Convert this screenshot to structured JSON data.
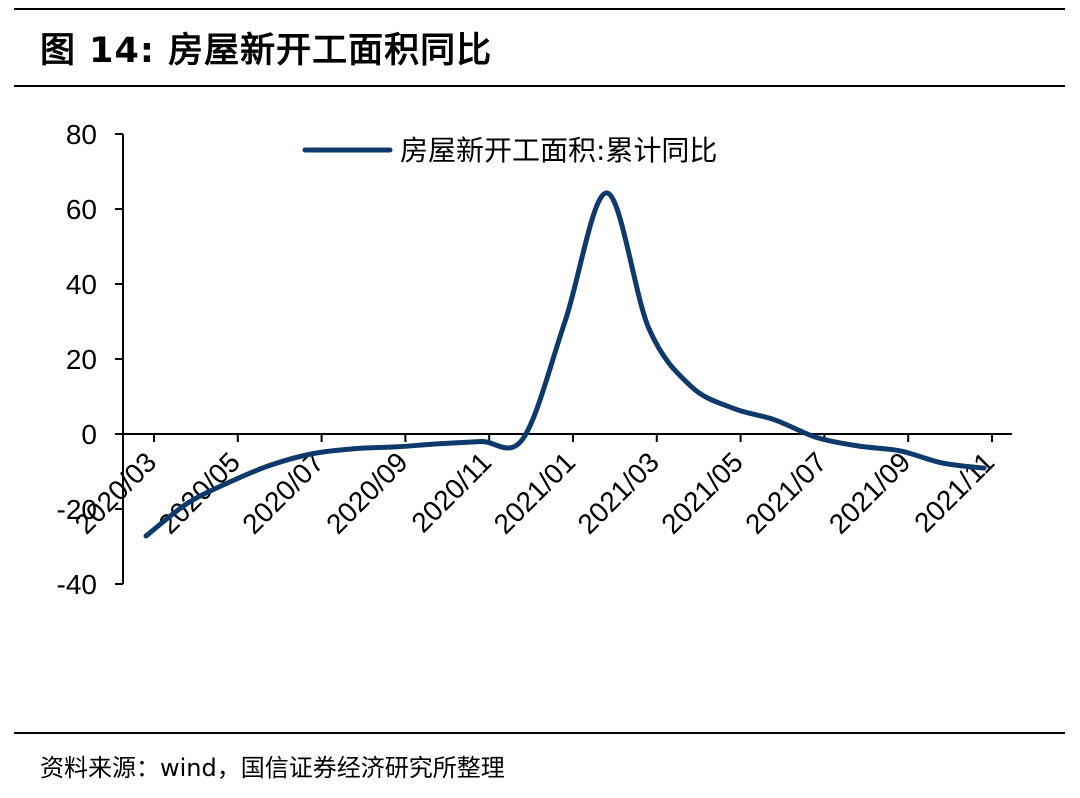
{
  "header": {
    "figure_title": "图 14:  房屋新开工面积同比"
  },
  "footer": {
    "source": "资料来源：wind，国信证券经济研究所整理"
  },
  "colors": {
    "line": "#0e3a6b",
    "text": "#000000",
    "rule": "#000000"
  },
  "chart_data": {
    "type": "line",
    "title": "",
    "xlabel": "",
    "ylabel": "",
    "ylim": [
      -40,
      80
    ],
    "yticks": [
      -40,
      -20,
      0,
      20,
      40,
      60,
      80
    ],
    "grid": false,
    "legend_position": "top-center",
    "x_tick_labels": [
      "2020/03",
      "2020/05",
      "2020/07",
      "2020/09",
      "2020/11",
      "2021/01",
      "2021/03",
      "2021/05",
      "2021/07",
      "2021/09",
      "2021/11"
    ],
    "series": [
      {
        "name": "房屋新开工面积:累计同比",
        "x": [
          "2020/03",
          "2020/04",
          "2020/05",
          "2020/06",
          "2020/07",
          "2020/08",
          "2020/09",
          "2020/10",
          "2020/11",
          "2020/12",
          "2021/01",
          "2021/02",
          "2021/03",
          "2021/04",
          "2021/05",
          "2021/06",
          "2021/07",
          "2021/08",
          "2021/09",
          "2021/10",
          "2021/11"
        ],
        "values": [
          -27.2,
          -18.4,
          -12.8,
          -8.2,
          -5.2,
          -3.9,
          -3.4,
          -2.6,
          -2.0,
          -1.2,
          30.0,
          64.3,
          28.2,
          12.8,
          6.9,
          3.8,
          -0.9,
          -3.2,
          -4.5,
          -7.7,
          -9.1
        ]
      }
    ]
  }
}
